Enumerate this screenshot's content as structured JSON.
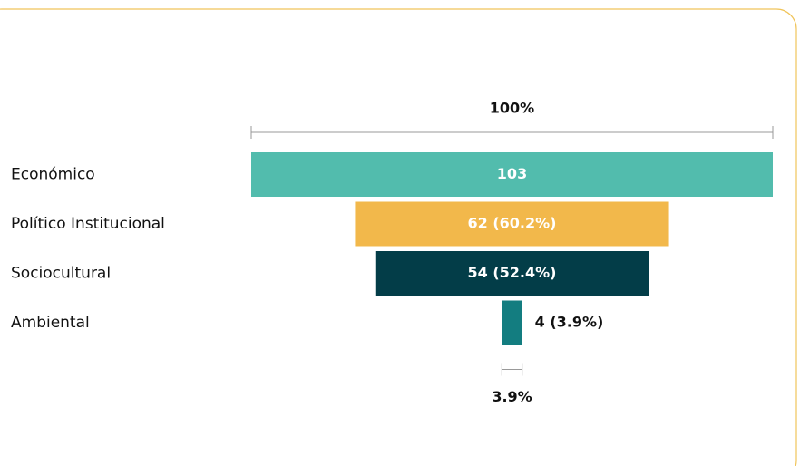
{
  "chart_data": {
    "type": "funnel",
    "categories": [
      "Económico",
      "Político Institucional",
      "Sociocultural",
      "Ambiental"
    ],
    "values": [
      103,
      62,
      54,
      4
    ],
    "value_labels": [
      "103",
      "62 (60.2%)",
      "54 (52.4%)",
      "4 (3.9%)"
    ],
    "colors": [
      "#52bcad",
      "#f2b84b",
      "#033d48",
      "#137d80"
    ],
    "top_annotation": "100%",
    "bottom_annotation": "3.9%"
  }
}
